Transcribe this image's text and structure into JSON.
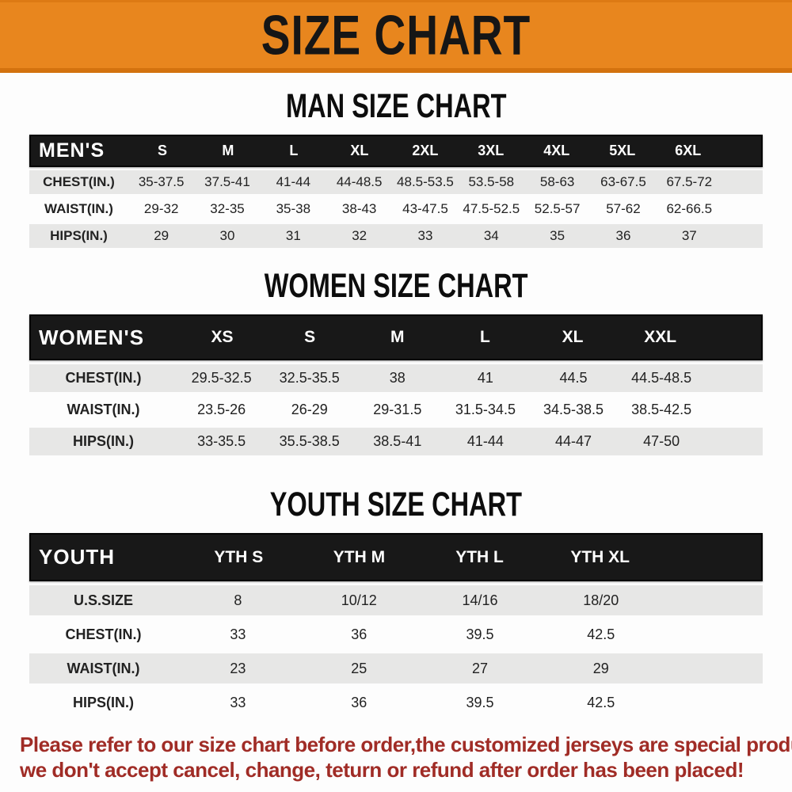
{
  "banner": {
    "title": "SIZE CHART",
    "bg_color": "#E8861E",
    "text_color": "#161616"
  },
  "tables": [
    {
      "title": "MAN SIZE CHART",
      "header_label": "MEN'S",
      "columns": [
        "S",
        "M",
        "L",
        "XL",
        "2XL",
        "3XL",
        "4XL",
        "5XL",
        "6XL"
      ],
      "rows": [
        {
          "label": "CHEST(IN.)",
          "values": [
            "35-37.5",
            "37.5-41",
            "41-44",
            "44-48.5",
            "48.5-53.5",
            "53.5-58",
            "58-63",
            "63-67.5",
            "67.5-72"
          ]
        },
        {
          "label": "WAIST(IN.)",
          "values": [
            "29-32",
            "32-35",
            "35-38",
            "38-43",
            "43-47.5",
            "47.5-52.5",
            "52.5-57",
            "57-62",
            "62-66.5"
          ]
        },
        {
          "label": "HIPS(IN.)",
          "values": [
            "29",
            "30",
            "31",
            "32",
            "33",
            "34",
            "35",
            "36",
            "37"
          ]
        }
      ]
    },
    {
      "title": "WOMEN SIZE CHART",
      "header_label": "WOMEN'S",
      "columns": [
        "XS",
        "S",
        "M",
        "L",
        "XL",
        "XXL"
      ],
      "rows": [
        {
          "label": "CHEST(IN.)",
          "values": [
            "29.5-32.5",
            "32.5-35.5",
            "38",
            "41",
            "44.5",
            "44.5-48.5"
          ]
        },
        {
          "label": "WAIST(IN.)",
          "values": [
            "23.5-26",
            "26-29",
            "29-31.5",
            "31.5-34.5",
            "34.5-38.5",
            "38.5-42.5"
          ]
        },
        {
          "label": "HIPS(IN.)",
          "values": [
            "33-35.5",
            "35.5-38.5",
            "38.5-41",
            "41-44",
            "44-47",
            "47-50"
          ]
        }
      ]
    },
    {
      "title": "YOUTH SIZE CHART",
      "header_label": "YOUTH",
      "columns": [
        "YTH S",
        "YTH M",
        "YTH L",
        "YTH XL"
      ],
      "rows": [
        {
          "label": "U.S.SIZE",
          "values": [
            "8",
            "10/12",
            "14/16",
            "18/20"
          ]
        },
        {
          "label": "CHEST(IN.)",
          "values": [
            "33",
            "36",
            "39.5",
            "42.5"
          ]
        },
        {
          "label": "WAIST(IN.)",
          "values": [
            "23",
            "25",
            "27",
            "29"
          ]
        },
        {
          "label": "HIPS(IN.)",
          "values": [
            "33",
            "36",
            "39.5",
            "42.5"
          ]
        }
      ]
    }
  ],
  "footer": {
    "line1": "Please refer to our size chart before order,the customized jerseys are special products,",
    "line2": "we don't accept cancel, change, teturn or refund after order has been placed!",
    "text_color": "#A02C26"
  }
}
